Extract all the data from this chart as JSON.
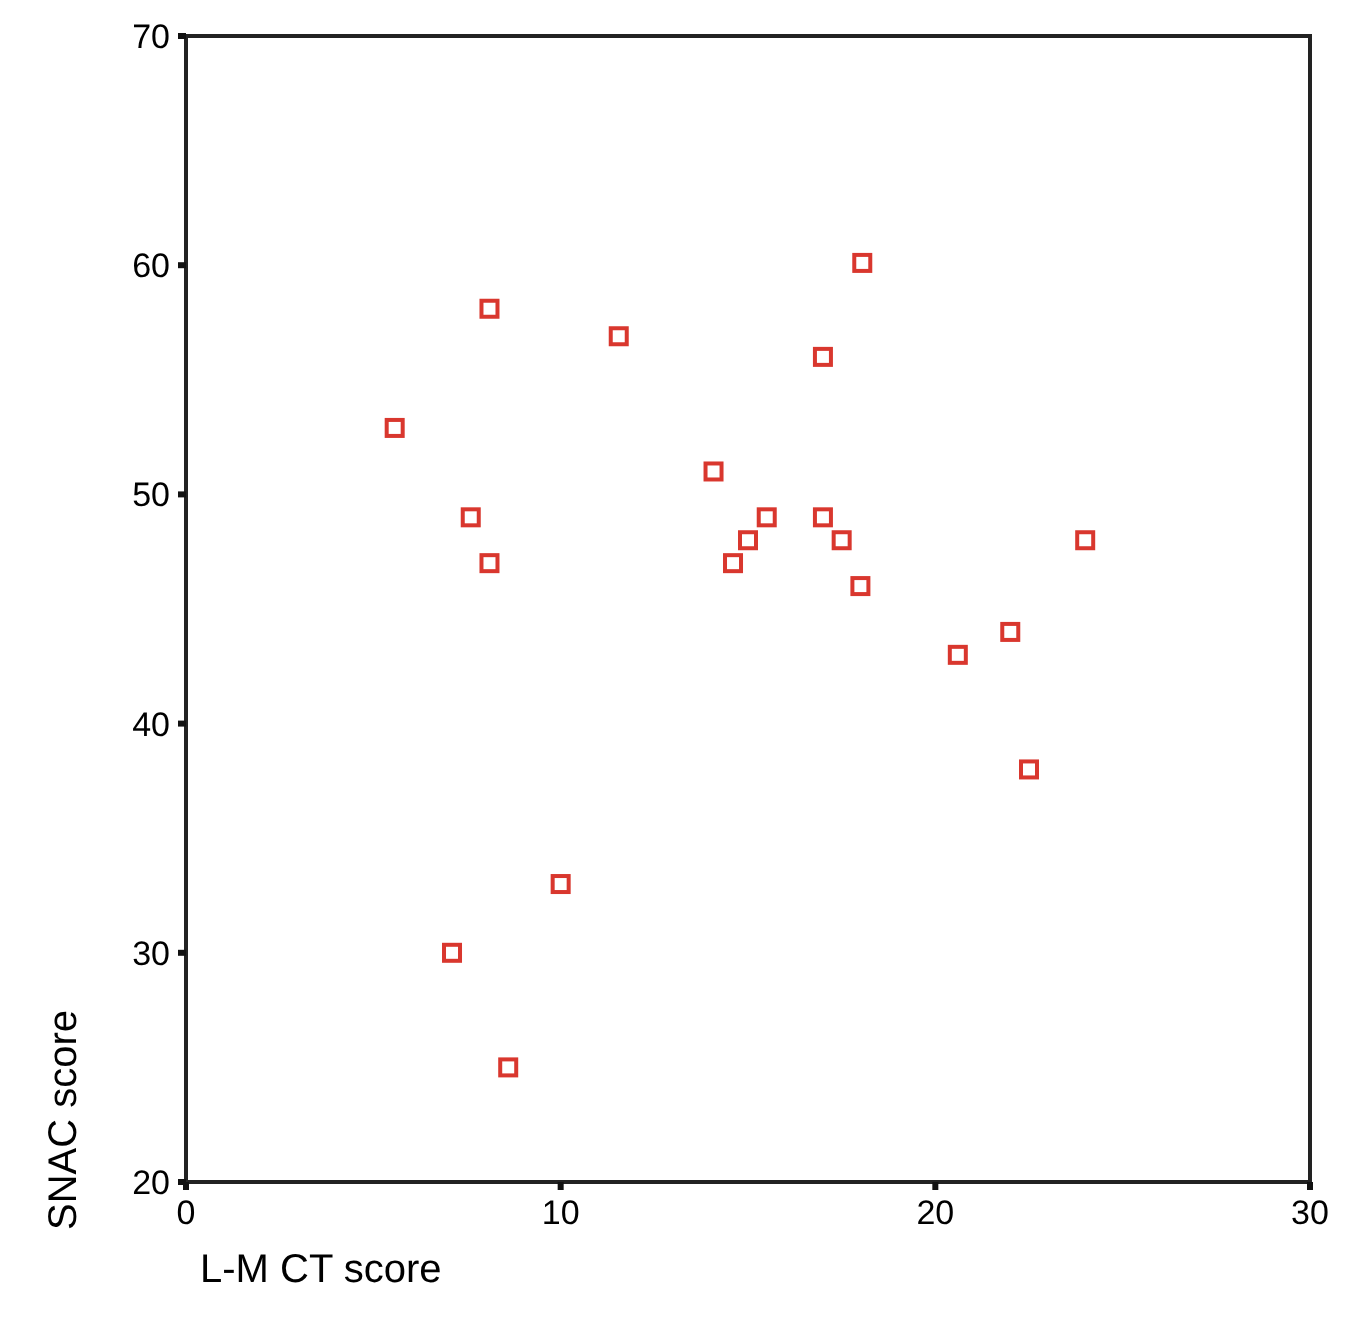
{
  "chart_data": {
    "type": "scatter",
    "xlabel": "L-M CT score",
    "ylabel": "SNAC score",
    "x": [
      8.1,
      11.55,
      5.57,
      14.08,
      15.5,
      15.0,
      14.6,
      7.6,
      8.1,
      10.0,
      7.1,
      8.6,
      18.05,
      17.0,
      17.0,
      17.5,
      18.0,
      24.0,
      22.0,
      20.6,
      22.5
    ],
    "series": [
      {
        "color": "#d9372e",
        "values": [
          58.1,
          56.9,
          52.9,
          51.0,
          49.0,
          48.0,
          47.0,
          49.0,
          47.0,
          33.0,
          30.0,
          25.0,
          60.1,
          56.0,
          49.0,
          48.0,
          46.0,
          48.0,
          44.0,
          43.0,
          38.0
        ]
      }
    ],
    "xlim": [
      0,
      30
    ],
    "xticks": [
      0,
      10,
      20,
      30
    ],
    "ylim": [
      20,
      70
    ],
    "yticks": [
      20,
      30,
      40,
      50,
      60,
      70
    ],
    "marker": "square",
    "grid": false
  }
}
